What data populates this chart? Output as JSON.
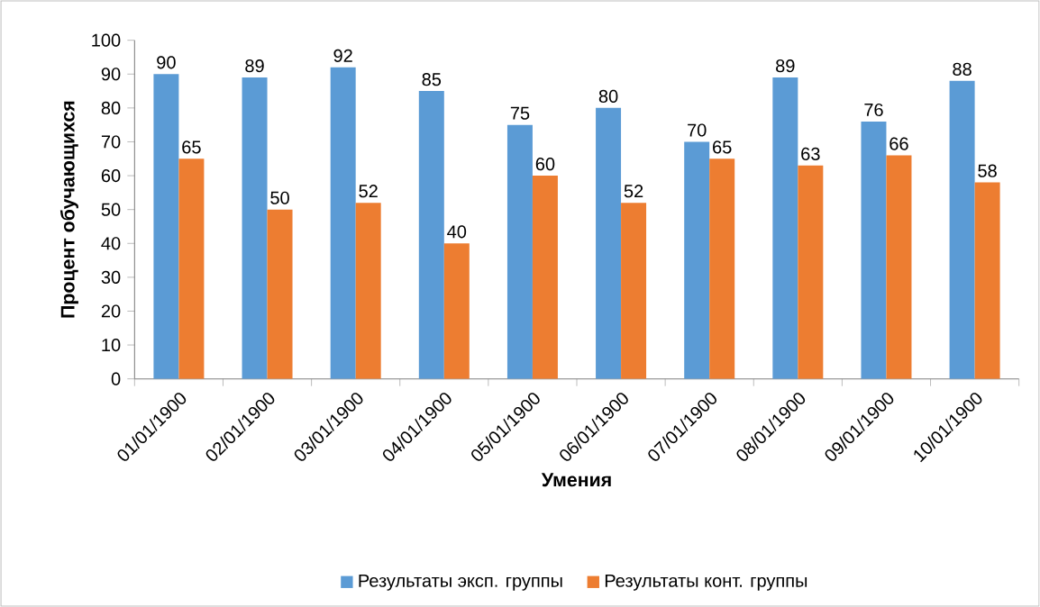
{
  "chart_data": {
    "type": "bar",
    "xlabel": "Умения",
    "ylabel": "Процент обучающихся",
    "categories": [
      "01/01/1900",
      "02/01/1900",
      "03/01/1900",
      "04/01/1900",
      "05/01/1900",
      "06/01/1900",
      "07/01/1900",
      "08/01/1900",
      "09/01/1900",
      "10/01/1900"
    ],
    "series": [
      {
        "name": "Результаты эксп. группы",
        "color": "#5b9bd5",
        "values": [
          90,
          89,
          92,
          85,
          75,
          80,
          70,
          89,
          76,
          88
        ]
      },
      {
        "name": "Результаты конт. группы",
        "color": "#ed7d31",
        "values": [
          65,
          50,
          52,
          40,
          60,
          52,
          65,
          63,
          66,
          58
        ]
      }
    ],
    "ylim": [
      0,
      100
    ],
    "yticks": [
      0,
      10,
      20,
      30,
      40,
      50,
      60,
      70,
      80,
      90,
      100
    ],
    "data_labels": true,
    "legend": "bottom",
    "grid": false
  }
}
